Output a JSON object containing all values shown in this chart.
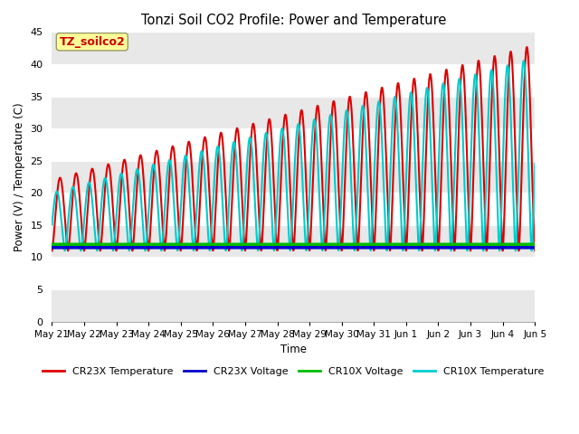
{
  "title": "Tonzi Soil CO2 Profile: Power and Temperature",
  "ylabel": "Power (V) / Temperature (C)",
  "xlabel": "Time",
  "annotation_label": "TZ_soilco2",
  "annotation_color": "#cc0000",
  "annotation_bg": "#ffff99",
  "ylim": [
    0,
    45
  ],
  "yticks": [
    0,
    5,
    10,
    15,
    20,
    25,
    30,
    35,
    40,
    45
  ],
  "legend_entries": [
    {
      "label": "CR23X Temperature",
      "color": "#dd0000",
      "lw": 1.5
    },
    {
      "label": "CR23X Voltage",
      "color": "#0000cc",
      "lw": 2.5
    },
    {
      "label": "CR10X Voltage",
      "color": "#00bb00",
      "lw": 2.5
    },
    {
      "label": "CR10X Temperature",
      "color": "#00cccc",
      "lw": 1.5
    }
  ],
  "cr23x_voltage_value": 11.5,
  "cr10x_voltage_value": 12.0,
  "fig_bg_color": "#ffffff",
  "plot_bg_color": "#ffffff",
  "stripe_color": "#e8e8e8",
  "n_days": 15,
  "x_tick_labels": [
    "May 21",
    "May 22",
    "May 23",
    "May 24",
    "May 25",
    "May 26",
    "May 27",
    "May 28",
    "May 29",
    "May 30",
    "May 31",
    "Jun 1",
    "Jun 2",
    "Jun 3",
    "Jun 4",
    "Jun 5"
  ]
}
